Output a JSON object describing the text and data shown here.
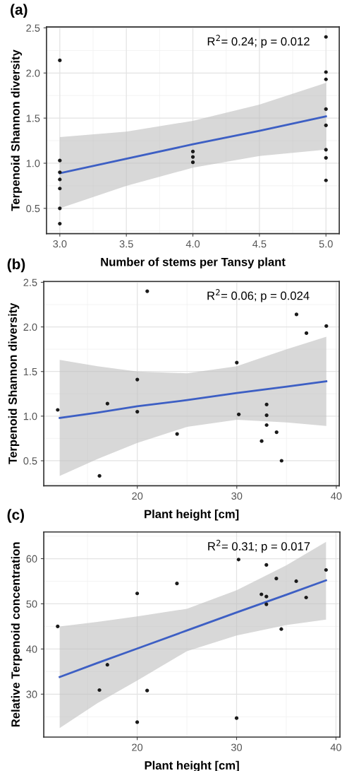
{
  "chart_data": [
    {
      "type": "scatter",
      "title": "(a)",
      "xlabel": "Number of stems per Tansy plant",
      "ylabel": "Terpenoid Shannon diversity",
      "annotations": [
        "R$^{2}$= 0.24; p = 0.012"
      ],
      "xlim": [
        2.9,
        5.1
      ],
      "ylim": [
        0.22,
        2.51
      ],
      "xticks": [
        {
          "value": 3,
          "label": "3.0"
        },
        {
          "value": 3.5,
          "label": "3.5"
        },
        {
          "value": 4,
          "label": "4.0"
        },
        {
          "value": 4.5,
          "label": "4.5"
        },
        {
          "value": 5,
          "label": "5.0"
        }
      ],
      "yticks": [
        {
          "value": 0.5,
          "label": "0.5"
        },
        {
          "value": 1,
          "label": "1.0"
        },
        {
          "value": 1.5,
          "label": "1.5"
        },
        {
          "value": 2,
          "label": "2.0"
        },
        {
          "value": 2.5,
          "label": "2.5"
        }
      ],
      "grid": true,
      "series": [
        {
          "marker": "circle",
          "color": "#1a1a1a",
          "x": [
            3,
            3,
            3,
            3,
            3,
            3,
            3,
            4,
            4,
            4,
            5,
            5,
            5,
            5,
            5,
            5,
            5,
            5
          ],
          "values": [
            2.14,
            1.03,
            0.9,
            0.82,
            0.72,
            0.5,
            0.33,
            1.13,
            1.07,
            1.01,
            2.4,
            2.01,
            1.93,
            1.6,
            1.42,
            1.15,
            1.06,
            0.81
          ]
        },
        {
          "type": "line",
          "color": "#3d5fc4",
          "x": [
            3,
            3.5,
            4,
            4.5,
            5
          ],
          "values": [
            0.89,
            1.05,
            1.21,
            1.36,
            1.52
          ],
          "lower": [
            0.5,
            0.75,
            0.95,
            1.08,
            1.15
          ],
          "upper": [
            1.29,
            1.35,
            1.47,
            1.65,
            1.89
          ]
        }
      ]
    },
    {
      "type": "scatter",
      "title": "(b)",
      "xlabel": "Plant height [cm]",
      "ylabel": "Terpenoid Shannon diversity",
      "annotations": [
        "R$^{2}$= 0.06; p = 0.024"
      ],
      "xlim": [
        10.6,
        40.3
      ],
      "ylim": [
        0.22,
        2.51
      ],
      "xticks": [
        20,
        30,
        40
      ],
      "yticks": [
        {
          "value": 0.5,
          "label": "0.5"
        },
        {
          "value": 1,
          "label": "1.0"
        },
        {
          "value": 1.5,
          "label": "1.5"
        },
        {
          "value": 2,
          "label": "2.0"
        },
        {
          "value": 2.5,
          "label": "2.5"
        }
      ],
      "grid": true,
      "series": [
        {
          "marker": "circle",
          "color": "#1a1a1a",
          "x": [
            12,
            16.2,
            17,
            20,
            20,
            21,
            24,
            30,
            30.2,
            33,
            33,
            33,
            32.5,
            34,
            34.5,
            36,
            37,
            39
          ],
          "values": [
            1.07,
            0.33,
            1.14,
            1.41,
            1.05,
            2.4,
            0.8,
            1.6,
            1.02,
            1.13,
            1.01,
            0.9,
            0.72,
            0.82,
            0.5,
            2.14,
            1.93,
            2.01
          ]
        },
        {
          "type": "line",
          "color": "#3d5fc4",
          "x": [
            12.2,
            16,
            20,
            25,
            30,
            35,
            39
          ],
          "values": [
            0.98,
            1.04,
            1.11,
            1.18,
            1.26,
            1.33,
            1.39
          ],
          "lower": [
            0.33,
            0.52,
            0.7,
            0.88,
            0.96,
            0.93,
            0.89
          ],
          "upper": [
            1.63,
            1.56,
            1.5,
            1.48,
            1.56,
            1.75,
            1.89
          ]
        }
      ]
    },
    {
      "type": "scatter",
      "title": "(c)",
      "xlabel": "Plant height [cm]",
      "ylabel": "Relative Terpenoid concentration",
      "annotations": [
        "R$^{2}$= 0.31; p = 0.017"
      ],
      "xlim": [
        10.6,
        40.4
      ],
      "ylim": [
        20.5,
        65.9
      ],
      "xticks": [
        20,
        30,
        40
      ],
      "yticks": [
        30,
        40,
        50,
        60
      ],
      "grid": true,
      "series": [
        {
          "marker": "circle",
          "color": "#1a1a1a",
          "x": [
            12,
            16.2,
            17,
            20,
            20,
            21,
            24,
            30,
            30.2,
            32.5,
            33,
            33,
            33,
            34,
            34.5,
            36,
            37,
            39
          ],
          "values": [
            45.0,
            30.9,
            36.5,
            52.3,
            23.8,
            30.8,
            54.5,
            24.7,
            59.8,
            52.1,
            58.6,
            51.6,
            49.9,
            55.6,
            44.4,
            55.0,
            51.4,
            57.5
          ]
        },
        {
          "type": "line",
          "color": "#3d5fc4",
          "x": [
            12.2,
            16,
            20,
            25,
            30,
            35,
            39
          ],
          "values": [
            33.8,
            36.9,
            40.1,
            44.1,
            48.1,
            52.0,
            55.2
          ],
          "lower": [
            22.5,
            28.0,
            33.0,
            39.5,
            43.0,
            45.3,
            46.5
          ],
          "upper": [
            45.0,
            46.0,
            47.2,
            48.9,
            53.0,
            58.5,
            63.7
          ]
        }
      ]
    }
  ]
}
